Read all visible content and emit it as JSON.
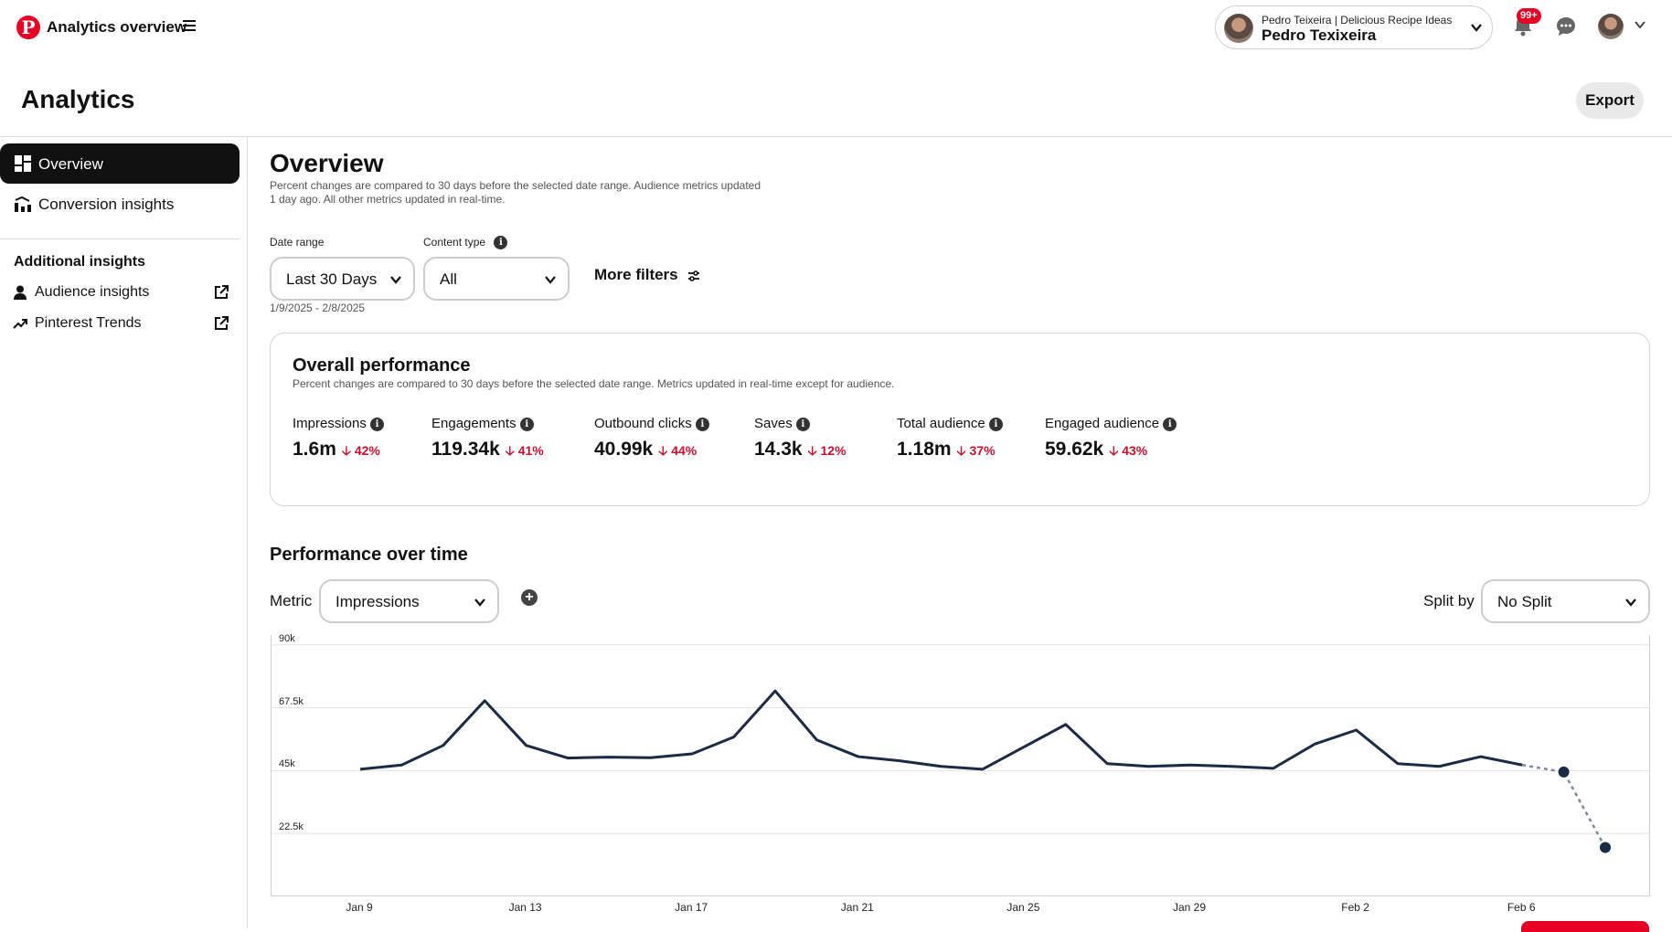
{
  "topbar": {
    "app_title": "Analytics overview",
    "account_sub": "Pedro Teixeira | Delicious Recipe Ideas",
    "account_name": "Pedro Texixeira",
    "notification_badge": "99+"
  },
  "header": {
    "title": "Analytics",
    "export_label": "Export"
  },
  "sidebar": {
    "items": [
      {
        "label": "Overview",
        "icon": "dashboard-icon",
        "active": true
      },
      {
        "label": "Conversion insights",
        "icon": "conversion-chart-icon",
        "active": false
      }
    ],
    "additional_heading": "Additional insights",
    "external_items": [
      {
        "label": "Audience insights",
        "icon": "person-icon"
      },
      {
        "label": "Pinterest Trends",
        "icon": "trend-icon"
      }
    ]
  },
  "overview": {
    "title": "Overview",
    "note": "Percent changes are compared to 30 days before the selected date range. Audience metrics updated 1 day ago. All other metrics updated in real-time."
  },
  "filters": {
    "date_range_label": "Date range",
    "date_range_value": "Last 30 Days",
    "date_range_dates": "1/9/2025 - 2/8/2025",
    "content_type_label": "Content type",
    "content_type_value": "All",
    "more_filters_label": "More filters"
  },
  "overall": {
    "title": "Overall performance",
    "note": "Percent changes are compared to 30 days before the selected date range. Metrics updated in real-time except for audience.",
    "metrics": [
      {
        "label": "Impressions",
        "value": "1.6m",
        "change": "42%"
      },
      {
        "label": "Engagements",
        "value": "119.34k",
        "change": "41%"
      },
      {
        "label": "Outbound clicks",
        "value": "40.99k",
        "change": "44%"
      },
      {
        "label": "Saves",
        "value": "14.3k",
        "change": "12%"
      },
      {
        "label": "Total audience",
        "value": "1.18m",
        "change": "37%"
      },
      {
        "label": "Engaged audience",
        "value": "59.62k",
        "change": "43%"
      }
    ]
  },
  "performance": {
    "title": "Performance over time",
    "metric_label": "Metric",
    "metric_value": "Impressions",
    "split_label": "Split by",
    "split_value": "No Split"
  },
  "colors": {
    "brand": "#e60023",
    "line": "#1b2b45",
    "negative": "#c8102e"
  },
  "chart_data": {
    "type": "line",
    "title": "",
    "xlabel": "",
    "ylabel": "",
    "x": [
      "Jan 9",
      "Jan 10",
      "Jan 11",
      "Jan 12",
      "Jan 13",
      "Jan 14",
      "Jan 15",
      "Jan 16",
      "Jan 17",
      "Jan 18",
      "Jan 19",
      "Jan 20",
      "Jan 21",
      "Jan 22",
      "Jan 23",
      "Jan 24",
      "Jan 25",
      "Jan 26",
      "Jan 27",
      "Jan 28",
      "Jan 29",
      "Jan 30",
      "Jan 31",
      "Feb 1",
      "Feb 2",
      "Feb 3",
      "Feb 4",
      "Feb 5",
      "Feb 6",
      "Feb 7",
      "Feb 8"
    ],
    "x_tick_labels": [
      "Jan 9",
      "Jan 13",
      "Jan 17",
      "Jan 21",
      "Jan 25",
      "Jan 29",
      "Feb 2",
      "Feb 6"
    ],
    "y_tick_labels": [
      "90k",
      "67.5k",
      "45k",
      "22.5k"
    ],
    "ylim": [
      0,
      90000
    ],
    "values": [
      45500,
      47000,
      54000,
      70000,
      54000,
      49500,
      49800,
      49600,
      51000,
      57000,
      73500,
      56000,
      50000,
      48500,
      46500,
      45500,
      53500,
      61500,
      47500,
      46500,
      47000,
      46500,
      45800,
      54500,
      59500,
      47500,
      46500,
      50000,
      47000,
      44500,
      17500
    ],
    "dashed_from_index": 28,
    "marked_points": [
      29,
      30
    ],
    "grid": true,
    "legend": "none"
  }
}
